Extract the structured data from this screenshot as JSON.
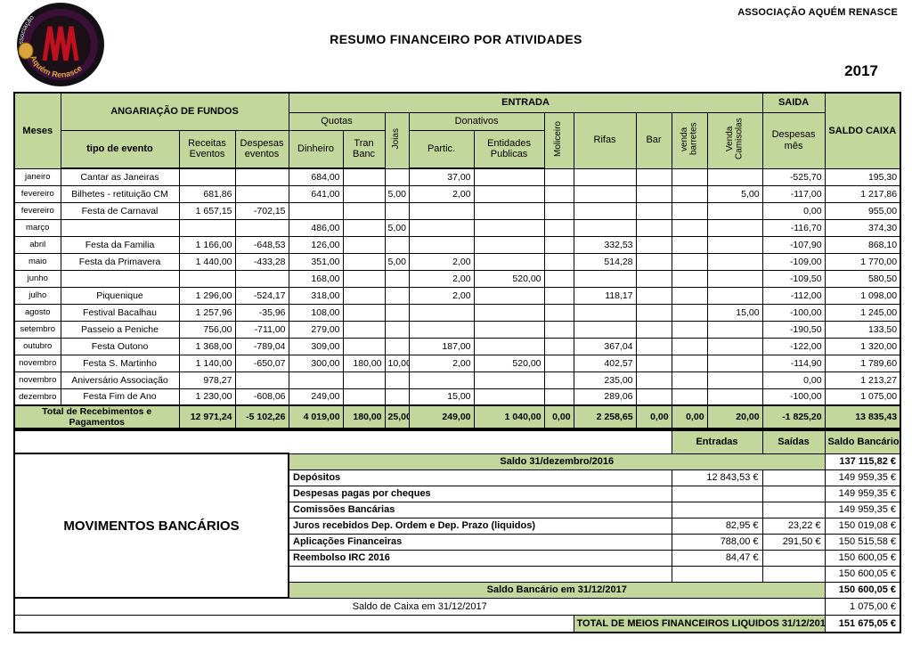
{
  "page": {
    "org": "ASSOCIAÇÃO AQUÉM RENASCE",
    "title": "RESUMO FINANCEIRO POR ATIVIDADES",
    "year": "2017"
  },
  "logo": {
    "arc_top": "associação",
    "arc_bottom": "Aquém Renasce"
  },
  "colors": {
    "header_green": "#c3d69b",
    "border": "#000000",
    "logo_red": "#c01020",
    "logo_gold": "#d9a43a"
  },
  "table": {
    "col_headers": {
      "meses": "Meses",
      "angariacao": "ANGARIAÇÃO DE FUNDOS",
      "entrada": "ENTRADA",
      "saida": "SAIDA",
      "saldo_caixa": "SALDO CAIXA",
      "quotas": "Quotas",
      "donativos": "Donativos",
      "tipo_evento": "tipo de evento",
      "receitas_eventos": "Receitas Eventos",
      "despesas_eventos": "Despesas eventos",
      "dinheiro": "Dinheiro",
      "tran_banc": "Tran Banc",
      "joias": "Joias",
      "partic": "Partic.",
      "entidades_publicas": "Entidades Publicas",
      "moliceiro": "Moliceiro",
      "rifas": "Rifas",
      "bar": "Bar",
      "venda_barretes": "venda barretes",
      "venda_camisolas": "Venda Camisolas",
      "despesas_mes": "Despesas mês"
    },
    "rows": [
      [
        "janeiro",
        "Cantar as Janeiras",
        "",
        "",
        "684,00",
        "",
        "",
        "37,00",
        "",
        "",
        "",
        "",
        "",
        "",
        "-525,70",
        "195,30"
      ],
      [
        "fevereiro",
        "Bilhetes - retituição CM",
        "681,86",
        "",
        "641,00",
        "",
        "5,00",
        "2,00",
        "",
        "",
        "",
        "",
        "",
        "5,00",
        "-117,00",
        "1 217,86"
      ],
      [
        "fevereiro",
        "Festa de Carnaval",
        "1 657,15",
        "-702,15",
        "",
        "",
        "",
        "",
        "",
        "",
        "",
        "",
        "",
        "",
        "0,00",
        "955,00"
      ],
      [
        "março",
        "",
        "",
        "",
        "486,00",
        "",
        "5,00",
        "",
        "",
        "",
        "",
        "",
        "",
        "",
        "-116,70",
        "374,30"
      ],
      [
        "abril",
        "Festa da Familia",
        "1 166,00",
        "-648,53",
        "126,00",
        "",
        "",
        "",
        "",
        "",
        "332,53",
        "",
        "",
        "",
        "-107,90",
        "868,10"
      ],
      [
        "maio",
        "Festa da Primavera",
        "1 440,00",
        "-433,28",
        "351,00",
        "",
        "5,00",
        "2,00",
        "",
        "",
        "514,28",
        "",
        "",
        "",
        "-109,00",
        "1 770,00"
      ],
      [
        "junho",
        "",
        "",
        "",
        "168,00",
        "",
        "",
        "2,00",
        "520,00",
        "",
        "",
        "",
        "",
        "",
        "-109,50",
        "580,50"
      ],
      [
        "julho",
        "Piquenique",
        "1 296,00",
        "-524,17",
        "318,00",
        "",
        "",
        "2,00",
        "",
        "",
        "118,17",
        "",
        "",
        "",
        "-112,00",
        "1 098,00"
      ],
      [
        "agosto",
        "Festival Bacalhau",
        "1 257,96",
        "-35,96",
        "108,00",
        "",
        "",
        "",
        "",
        "",
        "",
        "",
        "",
        "15,00",
        "-100,00",
        "1 245,00"
      ],
      [
        "setembro",
        "Passeio a Peniche",
        "756,00",
        "-711,00",
        "279,00",
        "",
        "",
        "",
        "",
        "",
        "",
        "",
        "",
        "",
        "-190,50",
        "133,50"
      ],
      [
        "outubro",
        "Festa Outono",
        "1 368,00",
        "-789,04",
        "309,00",
        "",
        "",
        "187,00",
        "",
        "",
        "367,04",
        "",
        "",
        "",
        "-122,00",
        "1 320,00"
      ],
      [
        "novembro",
        "Festa S. Martinho",
        "1 140,00",
        "-650,07",
        "300,00",
        "180,00",
        "10,00",
        "2,00",
        "520,00",
        "",
        "402,57",
        "",
        "",
        "",
        "-114,90",
        "1 789,60"
      ],
      [
        "novembro",
        "Aniversário Associação",
        "978,27",
        "",
        "",
        "",
        "",
        "",
        "",
        "",
        "235,00",
        "",
        "",
        "",
        "0,00",
        "1 213,27"
      ],
      [
        "dezembro",
        "Festa Fim de Ano",
        "1 230,00",
        "-608,06",
        "249,00",
        "",
        "",
        "15,00",
        "",
        "",
        "289,06",
        "",
        "",
        "",
        "-100,00",
        "1 075,00"
      ]
    ],
    "total_row": {
      "label": "Total de Recebimentos e Pagamentos",
      "values": [
        "12 971,24",
        "-5 102,26",
        "4 019,00",
        "180,00",
        "25,00",
        "249,00",
        "1 040,00",
        "0,00",
        "2 258,65",
        "0,00",
        "0,00",
        "20,00",
        "-1 825,20",
        "13 835,43"
      ]
    }
  },
  "bank": {
    "entradas_header": "Entradas",
    "saidas_header": "Saídas",
    "saldo_bancario_header": "Saldo Bancário",
    "section_label": "MOVIMENTOS BANCÁRIOS",
    "saldo_2016_label": "Saldo 31/dezembro/2016",
    "saldo_2016_value": "137 115,82 €",
    "rows": [
      {
        "label": "Depósitos",
        "entradas": "12 843,53 €",
        "saidas": "",
        "saldo": "149 959,35 €"
      },
      {
        "label": "Despesas pagas por cheques",
        "entradas": "",
        "saidas": "",
        "saldo": "149 959,35 €"
      },
      {
        "label": "Comissões Bancárias",
        "entradas": "",
        "saidas": "",
        "saldo": "149 959,35 €"
      },
      {
        "label": "Juros recebidos Dep. Ordem e Dep. Prazo (liquidos)",
        "entradas": "82,95 €",
        "saidas": "23,22 €",
        "saldo": "150 019,08 €"
      },
      {
        "label": "Aplicações Financeiras",
        "entradas": "788,00 €",
        "saidas": "291,50 €",
        "saldo": "150 515,58 €"
      },
      {
        "label": "Reembolso IRC 2016",
        "entradas": "84,47 €",
        "saidas": "",
        "saldo": "150 600,05 €"
      },
      {
        "label": "",
        "entradas": "",
        "saidas": "",
        "saldo": "150 600,05 €"
      }
    ],
    "saldo_bancario_2017_label": "Saldo Bancário em 31/12/2017",
    "saldo_bancario_2017_value": "150 600,05 €",
    "saldo_caixa_label": "Saldo de Caixa em 31/12/2017",
    "saldo_caixa_value": "1 075,00 €",
    "total_label": "TOTAL DE MEIOS FINANCEIROS LIQUIDOS 31/12/2017",
    "total_value": "151 675,05 €"
  }
}
